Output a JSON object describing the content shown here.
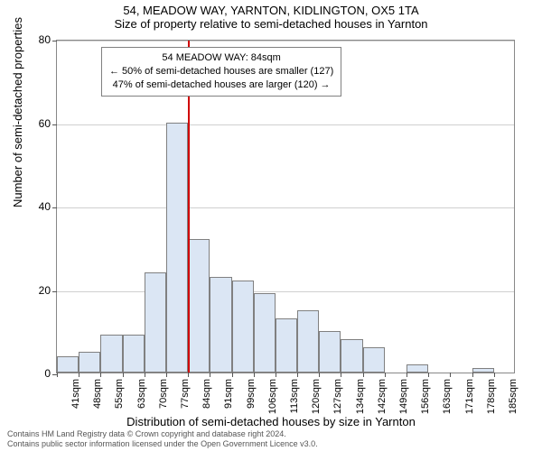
{
  "title_main": "54, MEADOW WAY, YARNTON, KIDLINGTON, OX5 1TA",
  "title_sub": "Size of property relative to semi-detached houses in Yarnton",
  "y_axis_title": "Number of semi-detached properties",
  "x_axis_title": "Distribution of semi-detached houses by size in Yarnton",
  "chart": {
    "type": "histogram",
    "ylim": [
      0,
      80
    ],
    "yticks": [
      0,
      20,
      40,
      60,
      80
    ],
    "xticks": [
      41,
      48,
      55,
      63,
      70,
      77,
      84,
      91,
      99,
      106,
      113,
      120,
      127,
      134,
      142,
      149,
      156,
      163,
      171,
      178,
      185
    ],
    "xtick_suffix": "sqm",
    "bar_color": "#dbe6f4",
    "bar_border": "#808080",
    "grid_color": "#b0b0b0",
    "background_color": "#ffffff",
    "bars": [
      {
        "x": 41,
        "v": 4
      },
      {
        "x": 48,
        "v": 5
      },
      {
        "x": 55,
        "v": 9
      },
      {
        "x": 63,
        "v": 9
      },
      {
        "x": 70,
        "v": 24
      },
      {
        "x": 77,
        "v": 60
      },
      {
        "x": 84,
        "v": 32
      },
      {
        "x": 91,
        "v": 23
      },
      {
        "x": 99,
        "v": 22
      },
      {
        "x": 106,
        "v": 19
      },
      {
        "x": 113,
        "v": 13
      },
      {
        "x": 120,
        "v": 15
      },
      {
        "x": 127,
        "v": 10
      },
      {
        "x": 134,
        "v": 8
      },
      {
        "x": 142,
        "v": 6
      },
      {
        "x": 149,
        "v": 0
      },
      {
        "x": 156,
        "v": 2
      },
      {
        "x": 163,
        "v": 0
      },
      {
        "x": 171,
        "v": 0
      },
      {
        "x": 178,
        "v": 1
      },
      {
        "x": 185,
        "v": 0
      }
    ],
    "marker_value": 84,
    "marker_color": "#d00000"
  },
  "info_box": {
    "line1": "54 MEADOW WAY: 84sqm",
    "line2": "← 50% of semi-detached houses are smaller (127)",
    "line3": "47% of semi-detached houses are larger (120) →"
  },
  "footer1": "Contains HM Land Registry data © Crown copyright and database right 2024.",
  "footer2": "Contains public sector information licensed under the Open Government Licence v3.0."
}
